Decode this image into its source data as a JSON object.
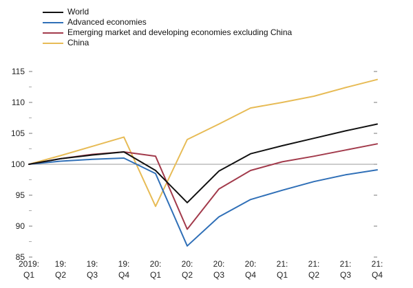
{
  "chart_data": {
    "type": "line",
    "title": "",
    "xlabel": "",
    "ylabel": "",
    "ylim": [
      85,
      115
    ],
    "yticks": [
      85,
      90,
      95,
      100,
      105,
      110,
      115
    ],
    "baseline": 100,
    "x_top_labels": [
      "2019:",
      "19:",
      "19:",
      "19:",
      "20:",
      "20:",
      "20:",
      "20:",
      "21:",
      "21:",
      "21:",
      "21:"
    ],
    "x_bottom_labels": [
      "Q1",
      "Q2",
      "Q3",
      "Q4",
      "Q1",
      "Q2",
      "Q3",
      "Q4",
      "Q1",
      "Q2",
      "Q3",
      "Q4"
    ],
    "series": [
      {
        "name": "World",
        "color": "#111111",
        "values": [
          100,
          100.9,
          101.5,
          102.0,
          99.0,
          93.8,
          98.9,
          101.7,
          103.0,
          104.2,
          105.4,
          106.5
        ]
      },
      {
        "name": "Advanced economies",
        "color": "#2f6fb7",
        "values": [
          100,
          100.5,
          100.8,
          101.0,
          98.5,
          86.8,
          91.5,
          94.3,
          95.8,
          97.2,
          98.3,
          99.1
        ]
      },
      {
        "name": "Emerging market and developing economies excluding China",
        "color": "#a23a4b",
        "values": [
          100,
          100.9,
          101.6,
          102.0,
          101.3,
          89.5,
          96.0,
          99.0,
          100.4,
          101.3,
          102.3,
          103.3
        ]
      },
      {
        "name": "China",
        "color": "#e7bb55",
        "values": [
          100,
          101.4,
          102.9,
          104.4,
          93.2,
          104.0,
          106.5,
          109.1,
          110.0,
          111.0,
          112.4,
          113.7
        ]
      }
    ]
  }
}
